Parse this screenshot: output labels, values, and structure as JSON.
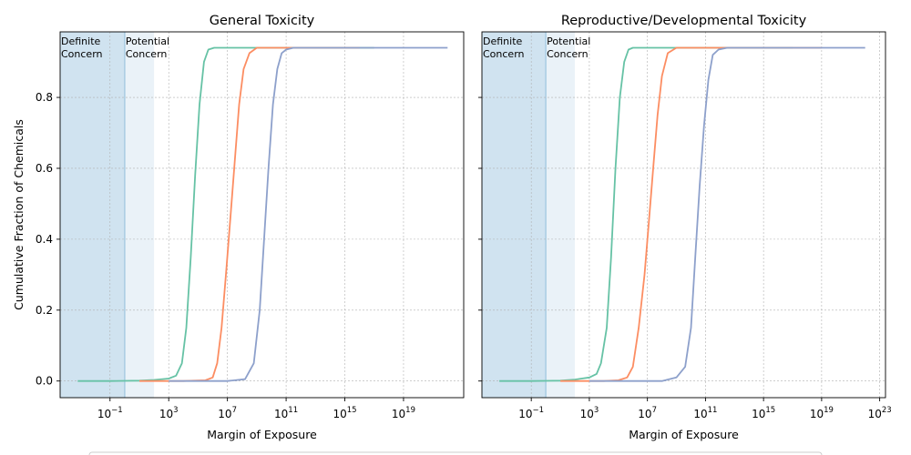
{
  "figure": {
    "ylabel": "Cumulative Fraction of Chemicals",
    "colors": {
      "definite_fill": "#d0e3f0",
      "potential_fill": "#eaf2f8",
      "boundary_line": "#a9cce3",
      "grid": "#b0b0b0",
      "series": [
        "#66c2a5",
        "#fc8d62",
        "#8da0cb"
      ]
    }
  },
  "chart_data": [
    {
      "type": "line",
      "title": "General Toxicity",
      "xlabel": "Margin of Exposure",
      "xscale": "log",
      "xlim_log10": [
        -4.4,
        23.1
      ],
      "ylim": [
        -0.047,
        0.985
      ],
      "x_tick_labels": [
        {
          "base": "10",
          "exp": "−1",
          "log10": -1
        },
        {
          "base": "10",
          "exp": "3",
          "log10": 3
        },
        {
          "base": "10",
          "exp": "7",
          "log10": 7
        },
        {
          "base": "10",
          "exp": "11",
          "log10": 11
        },
        {
          "base": "10",
          "exp": "15",
          "log10": 15
        },
        {
          "base": "10",
          "exp": "19",
          "log10": 19
        }
      ],
      "y_ticks": [
        0.0,
        0.2,
        0.4,
        0.6,
        0.8
      ],
      "y_tick_labels": [
        "0.0",
        "0.2",
        "0.4",
        "0.6",
        "0.8"
      ],
      "regions": [
        {
          "line1": "Definite",
          "line2": "Concern",
          "x_log10_range": [
            -4.4,
            0.0
          ],
          "tone": "definite"
        },
        {
          "line1": "Potential",
          "line2": "Concern",
          "x_log10_range": [
            0.0,
            2.0
          ],
          "tone": "potential"
        }
      ],
      "grid": true,
      "series": [
        {
          "x_log10": [
            -3.2,
            -1.0,
            0.0,
            1.0,
            2.0,
            3.0,
            3.5,
            3.9,
            4.2,
            4.5,
            4.8,
            5.1,
            5.4,
            5.7,
            6.1,
            7.0,
            10.0,
            13.0,
            17.0
          ],
          "y": [
            0.0,
            0.0,
            0.0005,
            0.001,
            0.003,
            0.007,
            0.015,
            0.05,
            0.15,
            0.35,
            0.58,
            0.78,
            0.9,
            0.935,
            0.94,
            0.94,
            0.94,
            0.94,
            0.94
          ]
        },
        {
          "x_log10": [
            1.0,
            4.0,
            5.5,
            6.0,
            6.3,
            6.6,
            6.9,
            7.2,
            7.5,
            7.8,
            8.1,
            8.5,
            9.0,
            10.0,
            12.0,
            16.0
          ],
          "y": [
            0.0,
            0.0,
            0.002,
            0.01,
            0.05,
            0.15,
            0.3,
            0.46,
            0.62,
            0.78,
            0.88,
            0.925,
            0.94,
            0.94,
            0.94,
            0.94
          ]
        },
        {
          "x_log10": [
            3.0,
            7.0,
            8.2,
            8.8,
            9.2,
            9.5,
            9.8,
            10.1,
            10.4,
            10.7,
            11.0,
            11.5,
            12.0,
            14.0,
            18.0,
            22.0
          ],
          "y": [
            0.0,
            0.0,
            0.005,
            0.05,
            0.2,
            0.4,
            0.6,
            0.78,
            0.88,
            0.925,
            0.935,
            0.94,
            0.94,
            0.94,
            0.94,
            0.94
          ]
        }
      ]
    },
    {
      "type": "line",
      "title": "Reproductive/Developmental Toxicity",
      "xlabel": "Margin of Exposure",
      "xscale": "log",
      "xlim_log10": [
        -4.4,
        23.4
      ],
      "ylim": [
        -0.047,
        0.985
      ],
      "x_tick_labels": [
        {
          "base": "10",
          "exp": "−1",
          "log10": -1
        },
        {
          "base": "10",
          "exp": "3",
          "log10": 3
        },
        {
          "base": "10",
          "exp": "7",
          "log10": 7
        },
        {
          "base": "10",
          "exp": "11",
          "log10": 11
        },
        {
          "base": "10",
          "exp": "15",
          "log10": 15
        },
        {
          "base": "10",
          "exp": "19",
          "log10": 19
        },
        {
          "base": "10",
          "exp": "23",
          "log10": 23
        }
      ],
      "y_ticks": [
        0.0,
        0.2,
        0.4,
        0.6,
        0.8
      ],
      "y_tick_labels": [],
      "regions": [
        {
          "line1": "Definite",
          "line2": "Concern",
          "x_log10_range": [
            -4.4,
            0.0
          ],
          "tone": "definite"
        },
        {
          "line1": "Potential",
          "line2": "Concern",
          "x_log10_range": [
            0.0,
            2.0
          ],
          "tone": "potential"
        }
      ],
      "grid": true,
      "series": [
        {
          "x_log10": [
            -3.2,
            -1.0,
            0.0,
            1.0,
            2.0,
            3.0,
            3.5,
            3.8,
            4.2,
            4.5,
            4.8,
            5.1,
            5.4,
            5.7,
            6.0,
            7.0,
            10.0,
            14.0,
            17.0
          ],
          "y": [
            0.0,
            0.0,
            0.0005,
            0.001,
            0.004,
            0.01,
            0.02,
            0.05,
            0.15,
            0.35,
            0.6,
            0.8,
            0.9,
            0.935,
            0.94,
            0.94,
            0.94,
            0.94,
            0.94
          ]
        },
        {
          "x_log10": [
            1.0,
            4.0,
            5.0,
            5.6,
            6.0,
            6.4,
            6.8,
            7.1,
            7.4,
            7.7,
            8.0,
            8.4,
            9.0,
            10.0,
            13.0,
            19.0
          ],
          "y": [
            0.0,
            0.0,
            0.002,
            0.01,
            0.04,
            0.15,
            0.3,
            0.45,
            0.6,
            0.75,
            0.86,
            0.925,
            0.94,
            0.94,
            0.94,
            0.94
          ]
        },
        {
          "x_log10": [
            3.0,
            8.0,
            9.0,
            9.6,
            10.0,
            10.3,
            10.6,
            10.9,
            11.2,
            11.5,
            11.9,
            12.5,
            13.0,
            16.0,
            20.0,
            22.0
          ],
          "y": [
            0.0,
            0.0,
            0.01,
            0.04,
            0.15,
            0.35,
            0.55,
            0.72,
            0.85,
            0.92,
            0.935,
            0.94,
            0.94,
            0.94,
            0.94,
            0.94
          ]
        }
      ]
    }
  ]
}
